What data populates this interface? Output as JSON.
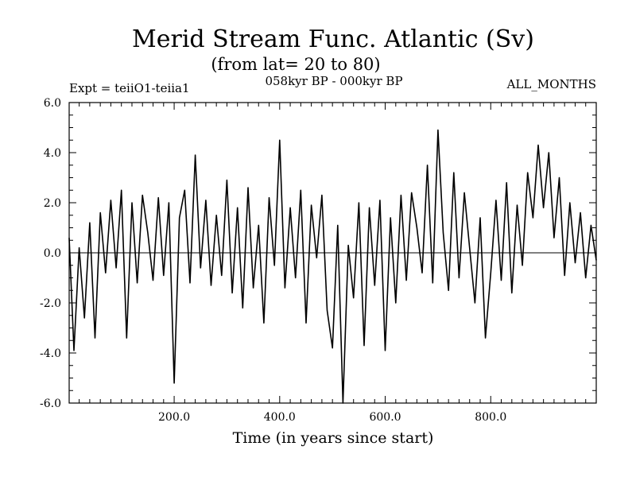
{
  "chart_data": {
    "type": "line",
    "title": "Merid Stream Func. Atlantic (Sv)",
    "subtitle": "(from lat= 20 to 80)",
    "left_note": "Expt = teiiO1-teiia1",
    "center_note": "058kyr BP - 000kyr BP",
    "right_note": "ALL_MONTHS",
    "xlabel": "Time (in years since start)",
    "ylabel": "",
    "xlim": [
      1,
      1000
    ],
    "ylim": [
      -6.0,
      6.0
    ],
    "xticks_major": [
      200,
      400,
      600,
      800
    ],
    "xtick_labels": [
      "200.0",
      "400.0",
      "600.0",
      "800.0"
    ],
    "yticks_major": [
      -6,
      -4,
      -2,
      0,
      2,
      4,
      6
    ],
    "ytick_labels": [
      "-6.0",
      "-4.0",
      "-2.0",
      "0.0",
      "2.0",
      "4.0",
      "6.0"
    ],
    "zero_line": true,
    "grid": false,
    "legend": "none",
    "line_color": "#000000",
    "series": [
      {
        "x": [
          1,
          10,
          20,
          30,
          40,
          50,
          60,
          70,
          80,
          90,
          100,
          110,
          120,
          130,
          140,
          150,
          160,
          170,
          180,
          190,
          200,
          210,
          220,
          230,
          240,
          250,
          260,
          270,
          280,
          290,
          300,
          310,
          320,
          330,
          340,
          350,
          360,
          370,
          380,
          390,
          400,
          410,
          420,
          430,
          440,
          450,
          460,
          470,
          480,
          490,
          500,
          510,
          520,
          530,
          540,
          550,
          560,
          570,
          580,
          590,
          600,
          610,
          620,
          630,
          640,
          650,
          660,
          670,
          680,
          690,
          700,
          710,
          720,
          730,
          740,
          750,
          760,
          770,
          780,
          790,
          800,
          810,
          820,
          830,
          840,
          850,
          860,
          870,
          880,
          890,
          900,
          910,
          920,
          930,
          940,
          950,
          960,
          970,
          980,
          990,
          1000
        ],
        "values": [
          0.6,
          -3.9,
          0.2,
          -2.6,
          1.2,
          -3.4,
          1.6,
          -0.8,
          2.1,
          -0.6,
          2.5,
          -3.4,
          2.0,
          -1.2,
          2.3,
          0.8,
          -1.1,
          2.2,
          -0.9,
          2.0,
          -5.2,
          1.4,
          2.5,
          -1.2,
          3.9,
          -0.6,
          2.1,
          -1.3,
          1.5,
          -0.9,
          2.9,
          -1.6,
          1.8,
          -2.2,
          2.6,
          -1.4,
          1.1,
          -2.8,
          2.2,
          -0.5,
          4.5,
          -1.4,
          1.8,
          -1.0,
          2.5,
          -2.8,
          1.9,
          -0.2,
          2.3,
          -2.3,
          -3.8,
          1.1,
          -6.0,
          0.3,
          -1.8,
          2.0,
          -3.7,
          1.8,
          -1.3,
          2.1,
          -3.9,
          1.4,
          -2.0,
          2.3,
          -1.1,
          2.4,
          1.0,
          -0.8,
          3.5,
          -1.2,
          4.9,
          0.8,
          -1.5,
          3.2,
          -1.0,
          2.4,
          0.2,
          -2.0,
          1.4,
          -3.4,
          -0.8,
          2.1,
          -1.1,
          2.8,
          -1.6,
          1.9,
          -0.5,
          3.2,
          1.4,
          4.3,
          1.8,
          4.0,
          0.6,
          3.0,
          -0.9,
          2.0,
          -0.4,
          1.6,
          -1.0,
          1.1,
          -0.3
        ]
      }
    ]
  }
}
